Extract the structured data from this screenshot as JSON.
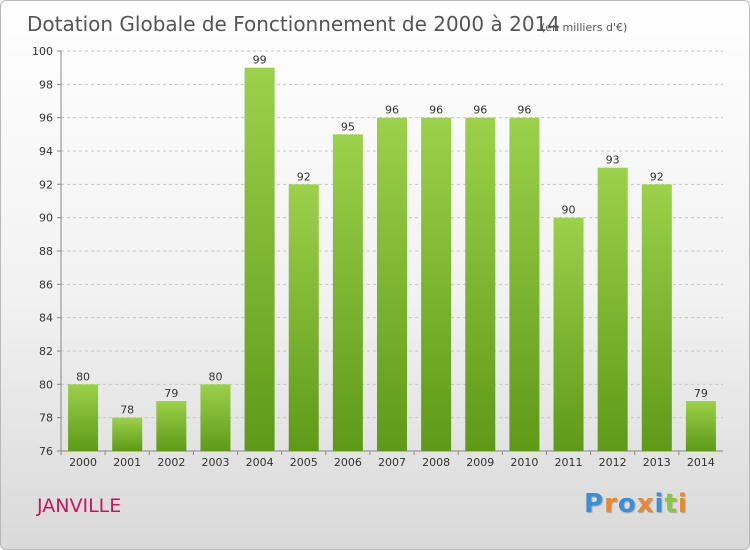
{
  "chart_data": {
    "type": "bar",
    "title": "Dotation Globale de Fonctionnement de 2000 à 2014",
    "subtitle": "(en milliers d'€)",
    "categories": [
      "2000",
      "2001",
      "2002",
      "2003",
      "2004",
      "2005",
      "2006",
      "2007",
      "2008",
      "2009",
      "2010",
      "2011",
      "2012",
      "2013",
      "2014"
    ],
    "values": [
      80,
      78,
      79,
      80,
      99,
      92,
      95,
      96,
      96,
      96,
      96,
      90,
      93,
      92,
      79
    ],
    "ylim": [
      76,
      100
    ],
    "yticks": [
      76,
      78,
      80,
      82,
      84,
      86,
      88,
      90,
      92,
      94,
      96,
      98,
      100
    ],
    "xlabel": "",
    "ylabel": "",
    "grid": true,
    "bar_color": "#7ab52e"
  },
  "footer": {
    "commune": "JANVILLE",
    "brand_letters": [
      "P",
      "r",
      "o",
      "x",
      "i",
      "t",
      "i"
    ],
    "brand_colors": [
      "#3a8fd6",
      "#e8892b",
      "#3a8fd6",
      "#e8892b",
      "#3a8fd6",
      "#8cc63f",
      "#e8892b"
    ]
  }
}
